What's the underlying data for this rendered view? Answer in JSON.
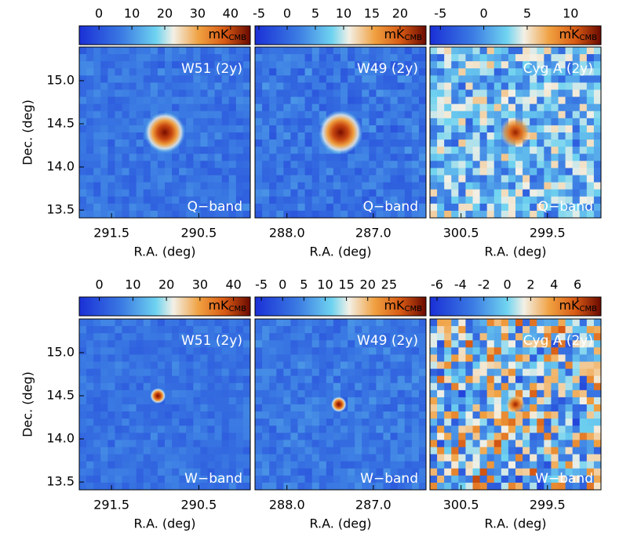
{
  "chart_data": [
    {
      "type": "map",
      "title": "W51 (2y)",
      "band": "Q−band",
      "xlabel": "R.A. (deg)",
      "ylabel": "Dec. (deg)",
      "xlim": [
        291.87,
        289.91
      ],
      "xticks": [
        291.5,
        290.5
      ],
      "ylim": [
        13.41,
        15.39
      ],
      "yticks": [
        13.5,
        {
          "value": 14,
          "label": "14.0"
        },
        14.5,
        {
          "value": 15,
          "label": "15.0"
        }
      ],
      "clim": [
        -6,
        46
      ],
      "cticks": [
        0,
        10,
        20,
        30,
        40
      ],
      "clabel": "mK",
      "clabel_sub": "CMB"
    },
    {
      "type": "map",
      "title": "W49 (2y)",
      "band": "Q−band",
      "xlabel": "R.A. (deg)",
      "xlim": [
        288.37,
        286.39
      ],
      "xticks": [
        {
          "value": 288,
          "label": "288.0"
        },
        {
          "value": 287,
          "label": "287.0"
        }
      ],
      "ylim": [
        13.41,
        15.39
      ],
      "clim": [
        -5.7,
        24.6
      ],
      "cticks": [
        -5,
        0,
        5,
        10,
        15,
        20
      ],
      "clabel": "mK",
      "clabel_sub": "CMB"
    },
    {
      "type": "map",
      "title": "Cyg A (2y)",
      "band": "Q−band",
      "xlabel": "R.A. (deg)",
      "xlim": [
        300.86,
        298.88
      ],
      "xticks": [
        300.5,
        299.5
      ],
      "ylim": [
        13.41,
        15.39
      ],
      "clim": [
        -6.2,
        13.5
      ],
      "cticks": [
        -5,
        0,
        5,
        10
      ],
      "clabel": "mK",
      "clabel_sub": "CMB"
    },
    {
      "type": "map",
      "title": "W51 (2y)",
      "band": "W−band",
      "xlabel": "R.A. (deg)",
      "ylabel": "Dec. (deg)",
      "xlim": [
        291.87,
        289.91
      ],
      "xticks": [
        291.5,
        290.5
      ],
      "ylim": [
        13.41,
        15.39
      ],
      "yticks": [
        13.5,
        {
          "value": 14,
          "label": "14.0"
        },
        14.5,
        {
          "value": 15,
          "label": "15.0"
        }
      ],
      "clim": [
        -6,
        45
      ],
      "cticks": [
        0,
        10,
        20,
        30,
        40
      ],
      "clabel": "mK",
      "clabel_sub": "CMB"
    },
    {
      "type": "map",
      "title": "W49 (2y)",
      "band": "W−band",
      "xlabel": "R.A. (deg)",
      "xlim": [
        288.37,
        286.39
      ],
      "xticks": [
        {
          "value": 288,
          "label": "288.0"
        },
        {
          "value": 287,
          "label": "287.0"
        }
      ],
      "ylim": [
        13.41,
        15.39
      ],
      "clim": [
        -6.5,
        33.7
      ],
      "cticks": [
        -5,
        0,
        5,
        10,
        15,
        20,
        25
      ],
      "clabel": "mK",
      "clabel_sub": "CMB"
    },
    {
      "type": "map",
      "title": "Cyg A (2y)",
      "band": "W−band",
      "xlabel": "R.A. (deg)",
      "xlim": [
        300.86,
        298.88
      ],
      "xticks": [
        300.5,
        299.5
      ],
      "ylim": [
        13.41,
        15.39
      ],
      "clim": [
        -6.6,
        8
      ],
      "cticks": [
        -6,
        -4,
        -2,
        0,
        2,
        4,
        6
      ],
      "clabel": "mK",
      "clabel_sub": "CMB"
    }
  ]
}
